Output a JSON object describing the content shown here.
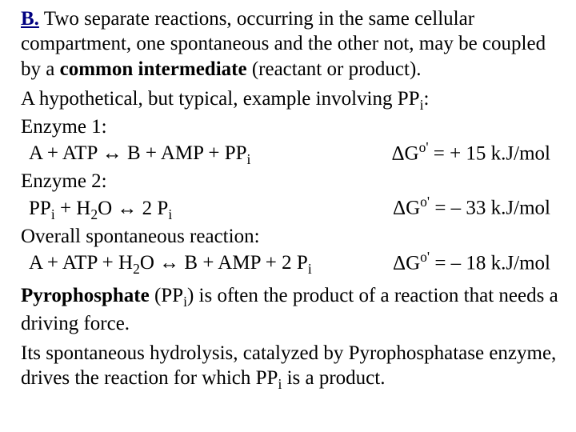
{
  "section_label": "B.",
  "intro_part1": " Two separate reactions, occurring in the same cellular compartment, one spontaneous and the other not, may be coupled by a ",
  "intro_bold": "common intermediate",
  "intro_part2": " (reactant or product).",
  "hypo_line_pre": "A hypothetical, but typical, example involving PP",
  "hypo_line_post": ":",
  "enzyme1_label": "Enzyme 1:",
  "rxn1_left_a": "A + ATP ",
  "rxn1_left_b": " B + AMP + PP",
  "rxn1_dg": "G",
  "rxn1_val": " =  + 15 k.J/mol",
  "enzyme2_label": "Enzyme 2:",
  "rxn2_left_a": "PP",
  "rxn2_left_b": " + H",
  "rxn2_left_c": "O ",
  "rxn2_left_d": " 2 P",
  "rxn2_val": " =  – 33 k.J/mol",
  "overall_label": "Overall spontaneous reaction:",
  "rxn3_left_a": "A + ATP + H",
  "rxn3_left_b": "O ",
  "rxn3_left_c": " B + AMP + 2 P",
  "rxn3_val": " =  – 18 k.J/mol",
  "pyro_bold": "Pyrophosphate",
  "pyro_mid1": " (PP",
  "pyro_mid2": ") is often the product of a reaction  that needs a driving force.",
  "last_para_a": "Its spontaneous hydrolysis, catalyzed by Pyrophosphatase enzyme, drives the reaction for which PP",
  "last_para_b": " is a product.",
  "sub_i": "i",
  "sub_2": "2",
  "delta": "Δ",
  "oprime": "o'",
  "arrow_glyph": "↔"
}
